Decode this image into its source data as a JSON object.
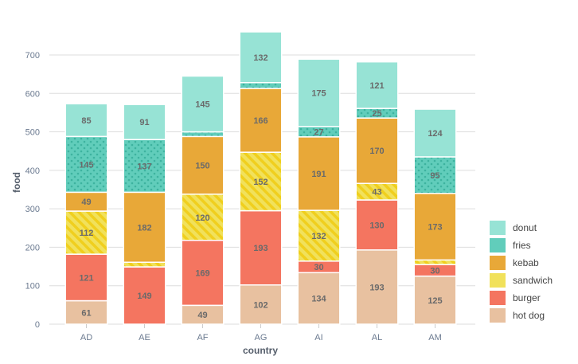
{
  "chart_data": {
    "type": "bar",
    "stacked": true,
    "title": "",
    "xlabel": "country",
    "ylabel": "food",
    "categories": [
      "AD",
      "AE",
      "AF",
      "AG",
      "AI",
      "AL",
      "AM"
    ],
    "ylim": [
      0,
      760
    ],
    "yticks": [
      0,
      100,
      200,
      300,
      400,
      500,
      600,
      700
    ],
    "grid": true,
    "legend": "right-bottom",
    "series": [
      {
        "name": "hot dog",
        "color": "#e8c1a0",
        "pattern": "none",
        "values": [
          61,
          0,
          49,
          102,
          134,
          193,
          125
        ]
      },
      {
        "name": "burger",
        "color": "#f47560",
        "pattern": "none",
        "values": [
          121,
          149,
          169,
          193,
          30,
          130,
          30
        ]
      },
      {
        "name": "sandwich",
        "color": "#f1e15b",
        "pattern": "lines",
        "values": [
          112,
          12,
          120,
          152,
          132,
          43,
          12
        ]
      },
      {
        "name": "kebab",
        "color": "#e8a838",
        "pattern": "none",
        "values": [
          49,
          182,
          150,
          166,
          191,
          170,
          173
        ]
      },
      {
        "name": "fries",
        "color": "#61cdbb",
        "pattern": "dots",
        "values": [
          145,
          137,
          12,
          15,
          27,
          25,
          95
        ]
      },
      {
        "name": "donut",
        "color": "#97e3d5",
        "pattern": "none",
        "values": [
          85,
          91,
          145,
          132,
          175,
          121,
          124
        ]
      }
    ],
    "label_min": 20
  }
}
